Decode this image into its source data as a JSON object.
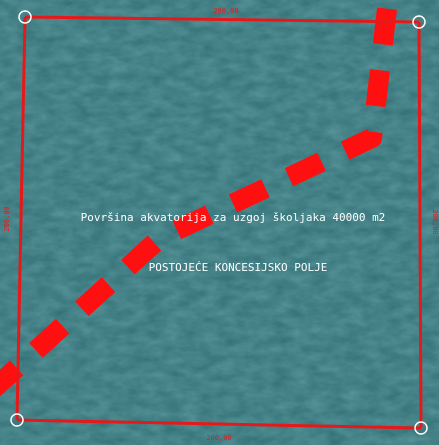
{
  "map": {
    "area_label": "Površina akvatorija za uzgoj školjaka 40000 m2",
    "field_label": "POSTOJEĆE KONCESIJSKO POLJE",
    "dimensions": {
      "top": "200,00",
      "bottom": "200,00",
      "left": "200,00",
      "right": "200,00"
    },
    "colors": {
      "water": "#2f6e74",
      "boundary": "#e81818",
      "label": "#ffffff",
      "vertex": "#ffffff"
    }
  }
}
